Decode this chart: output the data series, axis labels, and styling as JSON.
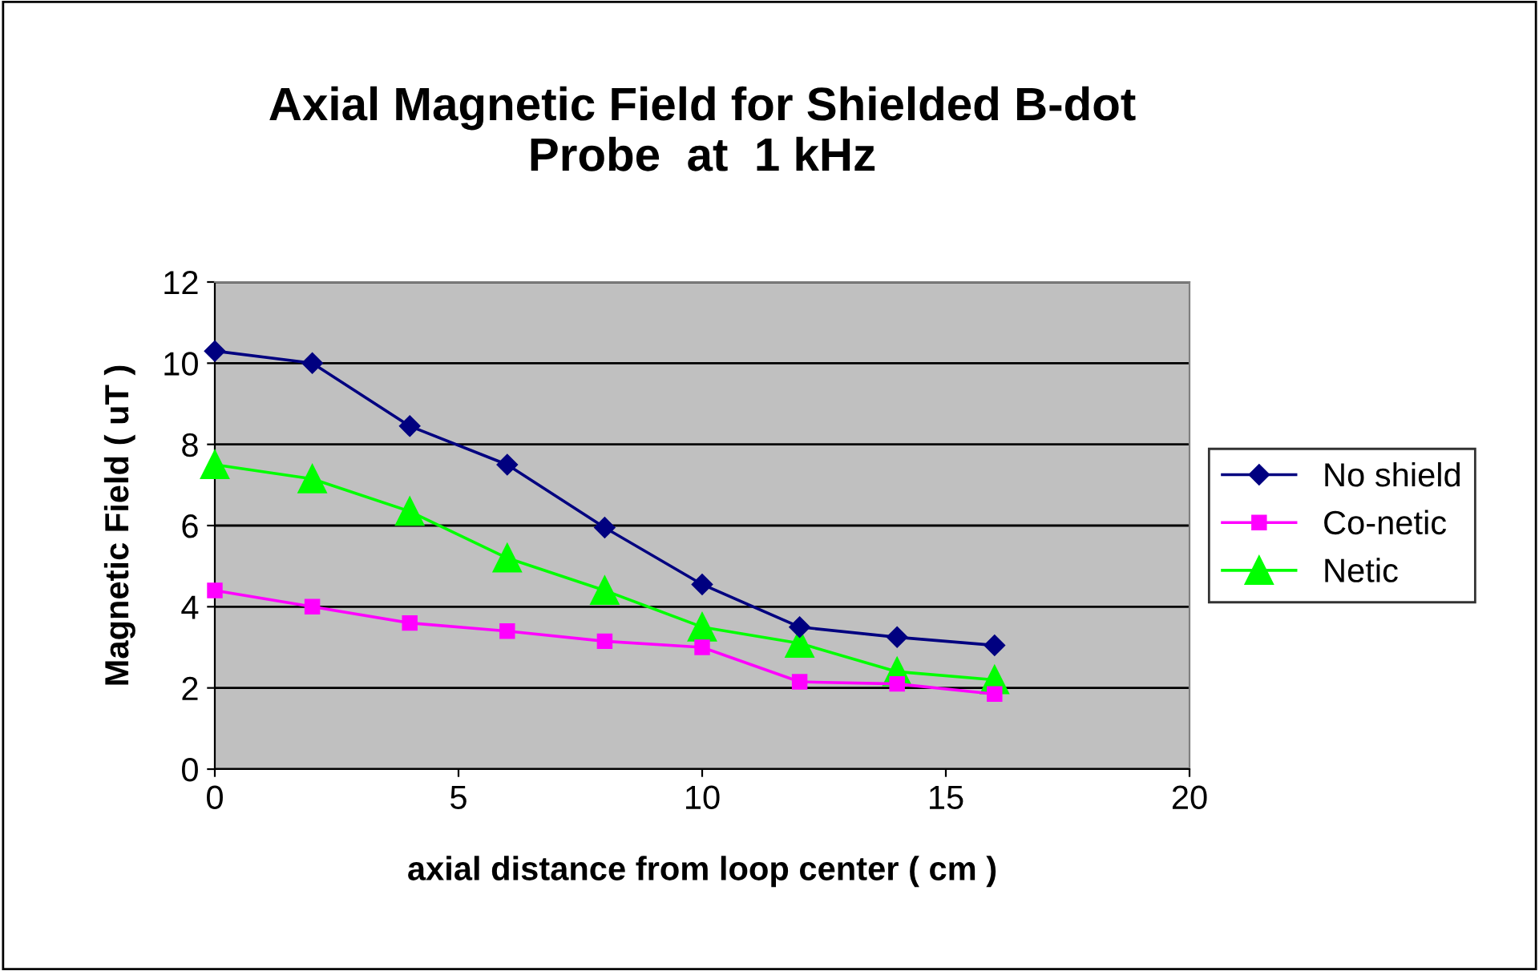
{
  "chart_data": {
    "type": "line",
    "title": "Axial Magnetic Field for Shielded B-dot\nProbe  at  1 kHz",
    "xlabel": "axial distance from loop center ( cm )",
    "ylabel": "Magnetic Field ( uT )",
    "x": [
      0,
      2,
      4,
      6,
      8,
      10,
      12,
      14,
      16
    ],
    "series": [
      {
        "name": "No shield",
        "color": "#000080",
        "marker": "diamond",
        "values": [
          10.3,
          10.0,
          8.45,
          7.5,
          5.95,
          4.55,
          3.5,
          3.25,
          3.05
        ]
      },
      {
        "name": "Co-netic",
        "color": "#ff00ff",
        "marker": "square",
        "values": [
          4.4,
          4.0,
          3.6,
          3.4,
          3.15,
          3.0,
          2.15,
          2.1,
          1.85
        ]
      },
      {
        "name": "Netic",
        "color": "#00ff00",
        "marker": "triangle",
        "values": [
          7.5,
          7.15,
          6.35,
          5.2,
          4.4,
          3.5,
          3.1,
          2.4,
          2.2
        ]
      }
    ],
    "xlim": [
      0,
      20
    ],
    "xticks": [
      0,
      5,
      10,
      15,
      20
    ],
    "ylim": [
      0,
      12
    ],
    "yticks": [
      0,
      2,
      4,
      6,
      8,
      10,
      12
    ],
    "grid": "y",
    "legend": "right",
    "line_style": "solid"
  }
}
